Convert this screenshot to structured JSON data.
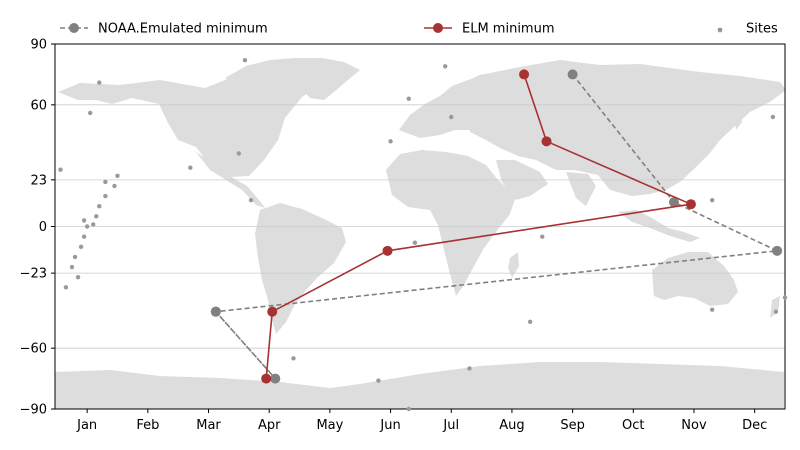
{
  "chart_data": {
    "type": "line",
    "title": "",
    "xlabel": "",
    "ylabel": "",
    "xlim": [
      -0.53,
      11.5
    ],
    "ylim": [
      -90,
      90
    ],
    "x_ticks": [
      "Jan",
      "Feb",
      "Mar",
      "Apr",
      "May",
      "Jun",
      "Jul",
      "Aug",
      "Sep",
      "Oct",
      "Nov",
      "Dec"
    ],
    "y_ticks": [
      90,
      60,
      23,
      0,
      -23,
      -60,
      -90
    ],
    "grid": true,
    "background_map": "world",
    "legend": {
      "placement": "top",
      "entries": [
        "NOAA.Emulated minimum",
        "ELM minimum",
        "Sites"
      ]
    },
    "series": [
      {
        "name": "NOAA.Emulated minimum",
        "color": "#808080",
        "dashed": true,
        "points": [
          [
            2.12,
            -42
          ],
          [
            3.1,
            -75
          ],
          [
            2.12,
            -42
          ],
          [
            11.37,
            -12
          ],
          [
            9.67,
            12
          ],
          [
            8.0,
            75
          ]
        ]
      },
      {
        "name": "ELM minimum",
        "color": "#a83232",
        "dashed": false,
        "points": [
          [
            2.95,
            -75
          ],
          [
            3.05,
            -42
          ],
          [
            4.95,
            -12
          ],
          [
            9.95,
            11
          ],
          [
            7.57,
            42
          ],
          [
            7.2,
            75
          ]
        ]
      }
    ],
    "sites": {
      "name": "Sites",
      "color": "#999999",
      "points": [
        [
          -0.44,
          28
        ],
        [
          -0.35,
          -30
        ],
        [
          -0.25,
          -20
        ],
        [
          -0.15,
          -25
        ],
        [
          -0.2,
          -15
        ],
        [
          -0.05,
          3
        ],
        [
          0.0,
          0
        ],
        [
          0.1,
          1
        ],
        [
          0.15,
          5
        ],
        [
          0.2,
          10
        ],
        [
          0.3,
          15
        ],
        [
          0.45,
          20
        ],
        [
          0.5,
          25
        ],
        [
          0.3,
          22
        ],
        [
          -0.1,
          -10
        ],
        [
          -0.05,
          -5
        ],
        [
          0.2,
          71
        ],
        [
          0.05,
          56
        ],
        [
          1.7,
          29
        ],
        [
          2.5,
          36
        ],
        [
          2.7,
          13
        ],
        [
          2.6,
          82
        ],
        [
          5.0,
          42
        ],
        [
          5.3,
          63
        ],
        [
          6.0,
          54
        ],
        [
          5.9,
          79
        ],
        [
          5.4,
          -8
        ],
        [
          7.5,
          -5
        ],
        [
          6.3,
          -70
        ],
        [
          7.3,
          -47
        ],
        [
          4.8,
          -76
        ],
        [
          3.4,
          -65
        ],
        [
          5.3,
          -90
        ],
        [
          10.3,
          13
        ],
        [
          10.3,
          -41
        ],
        [
          11.3,
          54
        ],
        [
          11.35,
          -42
        ],
        [
          11.5,
          -35
        ]
      ]
    }
  }
}
